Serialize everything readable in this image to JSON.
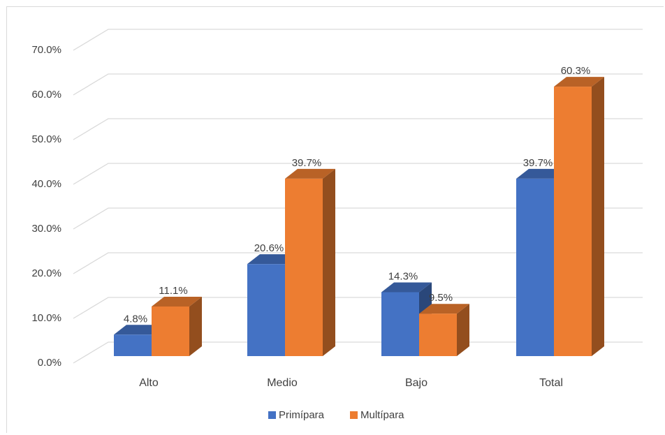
{
  "chart_data": {
    "type": "bar",
    "three_d": true,
    "categories": [
      "Alto",
      "Medio",
      "Bajo",
      "Total"
    ],
    "series": [
      {
        "name": "Primípara",
        "values": [
          4.8,
          20.6,
          14.3,
          39.7
        ],
        "labels": [
          "4.8%",
          "20.6%",
          "14.3%",
          "39.7%"
        ],
        "color": "#4472c4"
      },
      {
        "name": "Multípara",
        "values": [
          11.1,
          39.7,
          9.5,
          60.3
        ],
        "labels": [
          "11.1%",
          "39.7%",
          "9.5%",
          "60.3%"
        ],
        "color": "#ed7d31"
      }
    ],
    "yticks": [
      "0.0%",
      "10.0%",
      "20.0%",
      "30.0%",
      "40.0%",
      "50.0%",
      "60.0%",
      "70.0%"
    ],
    "ylim": [
      0,
      70
    ],
    "grid": true,
    "legend": "bottom"
  },
  "colors": {
    "grid": "#d9d9d9",
    "text": "#404040"
  }
}
